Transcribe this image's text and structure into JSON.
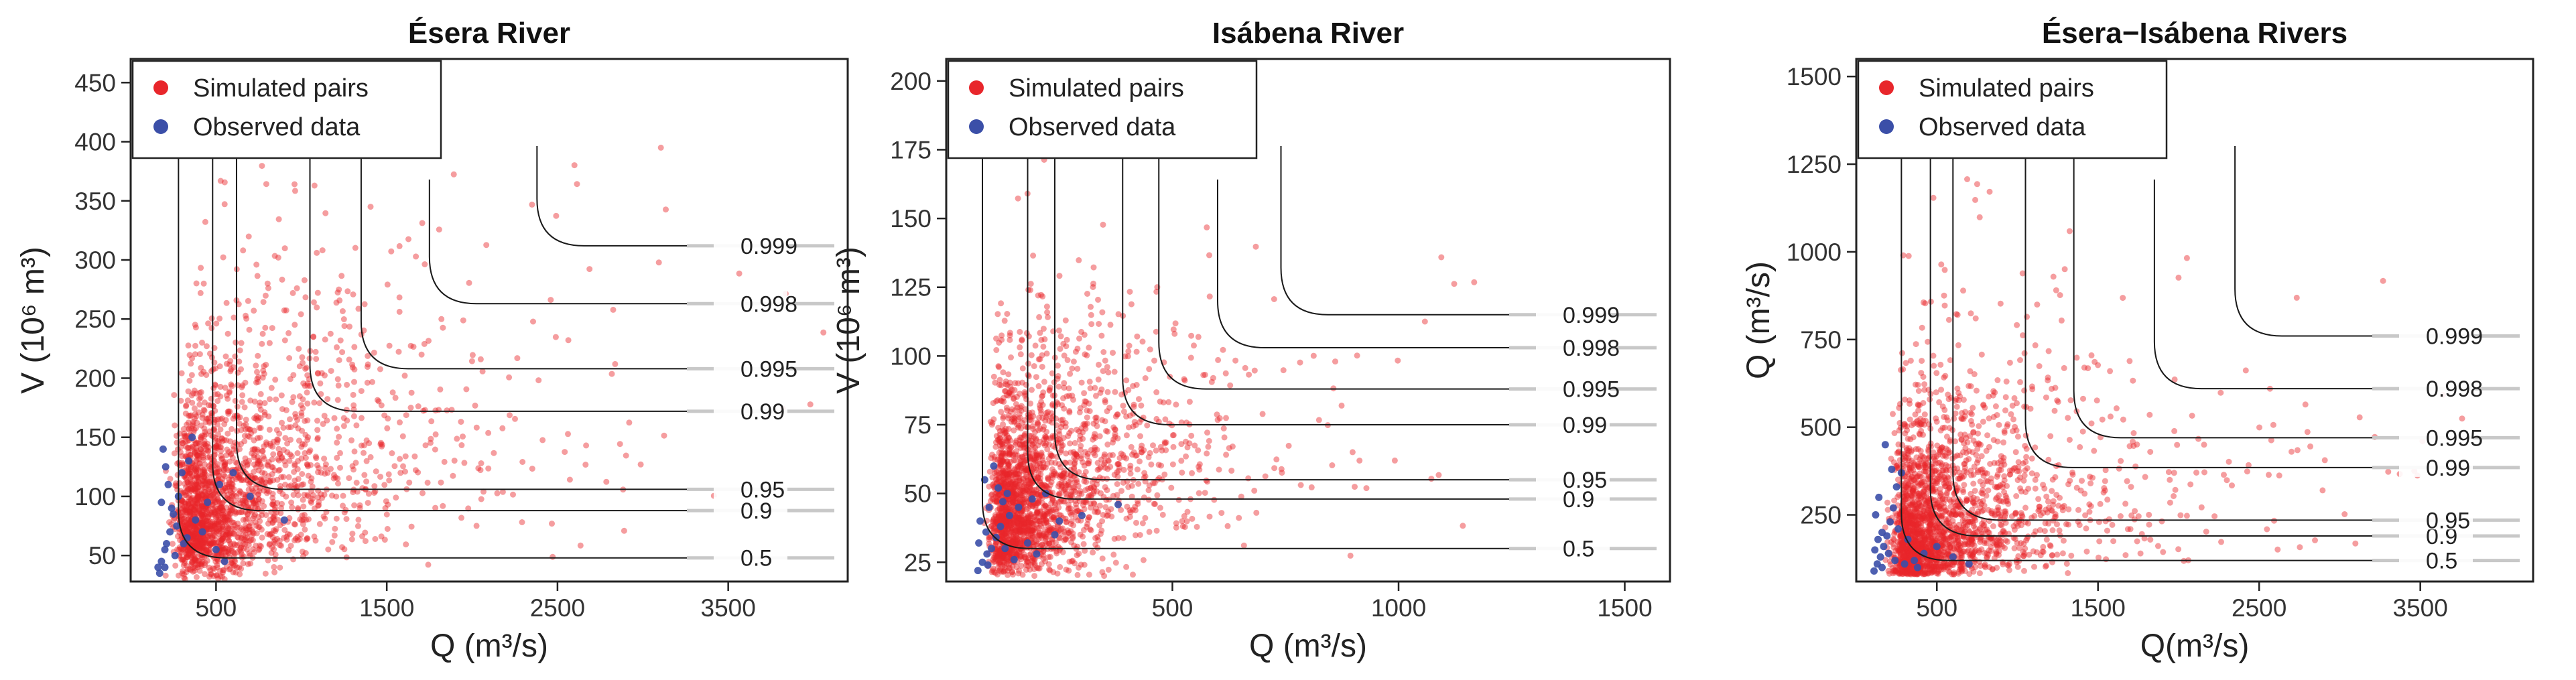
{
  "chart_data": [
    {
      "type": "scatter",
      "title": "Ésera River",
      "xlabel": "Q (m³/s)",
      "ylabel": "V (10⁶ m³)",
      "xlim": [
        0,
        4200
      ],
      "ylim": [
        28,
        470
      ],
      "x_ticks": [
        500,
        1500,
        2500,
        3500
      ],
      "x_tick_labels": [
        "500",
        "1500",
        "2500",
        "3500"
      ],
      "y_ticks": [
        50,
        100,
        150,
        200,
        250,
        300,
        350,
        400,
        450
      ],
      "y_tick_labels": [
        "50",
        "100",
        "150",
        "200",
        "250",
        "300",
        "350",
        "400",
        "450"
      ],
      "legend": [
        "Simulated pairs",
        "Observed data"
      ],
      "legend_position": "top-left",
      "series": [
        {
          "name": "Simulated pairs",
          "color": "#e8262b",
          "cluster": {
            "x_min": 150,
            "x_mode": 330,
            "x_max": 4200,
            "y_min": 30,
            "y_mode": 80,
            "y_max": 440,
            "corr": 0.55
          }
        },
        {
          "name": "Observed data",
          "color": "#3b4fa8",
          "points": [
            [
              160,
              40
            ],
            [
              180,
              45
            ],
            [
              200,
              55
            ],
            [
              210,
              60
            ],
            [
              230,
              70
            ],
            [
              250,
              85
            ],
            [
              280,
              100
            ],
            [
              300,
              120
            ],
            [
              340,
              130
            ],
            [
              360,
              150
            ],
            [
              200,
              40
            ],
            [
              170,
              35
            ],
            [
              260,
              50
            ],
            [
              310,
              60
            ],
            [
              380,
              80
            ],
            [
              450,
              95
            ],
            [
              520,
              110
            ],
            [
              600,
              120
            ],
            [
              700,
              100
            ],
            [
              900,
              80
            ],
            [
              190,
              140
            ],
            [
              220,
              110
            ],
            [
              240,
              90
            ],
            [
              270,
              75
            ],
            [
              330,
              65
            ],
            [
              420,
              70
            ],
            [
              500,
              55
            ],
            [
              550,
              45
            ],
            [
              180,
              95
            ],
            [
              205,
              125
            ]
          ]
        }
      ],
      "contours": [
        {
          "label": "0.5",
          "qx": 280,
          "vy": 48
        },
        {
          "label": "0.9",
          "qx": 480,
          "vy": 88
        },
        {
          "label": "0.95",
          "qx": 620,
          "vy": 106
        },
        {
          "label": "0.99",
          "qx": 1050,
          "vy": 172
        },
        {
          "label": "0.995",
          "qx": 1350,
          "vy": 208
        },
        {
          "label": "0.998",
          "qx": 1750,
          "vy": 263
        },
        {
          "label": "0.999",
          "qx": 2380,
          "vy": 312
        }
      ]
    },
    {
      "type": "scatter",
      "title": "Isábena River",
      "xlabel": "Q (m³/s)",
      "ylabel": "V (10⁶ m³)",
      "xlim": [
        0,
        1600
      ],
      "ylim": [
        18,
        208
      ],
      "x_ticks": [
        500,
        1000,
        1500
      ],
      "x_tick_labels": [
        "500",
        "1000",
        "1500"
      ],
      "y_ticks": [
        25,
        50,
        75,
        100,
        125,
        150,
        175,
        200
      ],
      "y_tick_labels": [
        "25",
        "50",
        "75",
        "100",
        "125",
        "150",
        "175",
        "200"
      ],
      "legend": [
        "Simulated pairs",
        "Observed data"
      ],
      "legend_position": "top-left",
      "series": [
        {
          "name": "Simulated pairs",
          "color": "#e8262b",
          "cluster": {
            "x_min": 60,
            "x_mode": 120,
            "x_max": 1250,
            "y_min": 20,
            "y_mode": 40,
            "y_max": 175,
            "corr": 0.55
          }
        },
        {
          "name": "Observed data",
          "color": "#3b4fa8",
          "points": [
            [
              70,
              22
            ],
            [
              80,
              25
            ],
            [
              90,
              28
            ],
            [
              100,
              30
            ],
            [
              110,
              34
            ],
            [
              120,
              38
            ],
            [
              140,
              42
            ],
            [
              160,
              45
            ],
            [
              190,
              48
            ],
            [
              220,
              50
            ],
            [
              75,
              40
            ],
            [
              85,
              55
            ],
            [
              95,
              45
            ],
            [
              130,
              30
            ],
            [
              150,
              26
            ],
            [
              180,
              32
            ],
            [
              250,
              40
            ],
            [
              300,
              42
            ],
            [
              380,
              46
            ],
            [
              105,
              60
            ],
            [
              115,
              52
            ],
            [
              125,
              47
            ],
            [
              72,
              32
            ],
            [
              88,
              36
            ],
            [
              200,
              28
            ],
            [
              240,
              35
            ],
            [
              92,
              24
            ],
            [
              135,
              50
            ]
          ]
        }
      ],
      "contours": [
        {
          "label": "0.5",
          "qx": 80,
          "vy": 30
        },
        {
          "label": "0.9",
          "qx": 180,
          "vy": 48
        },
        {
          "label": "0.95",
          "qx": 240,
          "vy": 55
        },
        {
          "label": "0.99",
          "qx": 390,
          "vy": 75
        },
        {
          "label": "0.995",
          "qx": 470,
          "vy": 88
        },
        {
          "label": "0.998",
          "qx": 600,
          "vy": 103
        },
        {
          "label": "0.999",
          "qx": 740,
          "vy": 115
        }
      ]
    },
    {
      "type": "scatter",
      "title": "Ésera−Isábena Rivers",
      "xlabel": "Q(m³/s)",
      "ylabel": "Q (m³/s)",
      "xlim": [
        0,
        4200
      ],
      "ylim": [
        60,
        1550
      ],
      "x_ticks": [
        500,
        1500,
        2500,
        3500
      ],
      "x_tick_labels": [
        "500",
        "1500",
        "2500",
        "3500"
      ],
      "y_ticks": [
        250,
        500,
        750,
        1000,
        1250,
        1500
      ],
      "y_tick_labels": [
        "250",
        "500",
        "750",
        "1000",
        "1250",
        "1500"
      ],
      "legend": [
        "Simulated pairs",
        "Observed data"
      ],
      "legend_position": "top-left",
      "series": [
        {
          "name": "Simulated pairs",
          "color": "#e8262b",
          "cluster": {
            "x_min": 100,
            "x_mode": 300,
            "x_max": 4100,
            "y_min": 80,
            "y_mode": 180,
            "y_max": 1350,
            "corr": 0.45
          }
        },
        {
          "name": "Observed data",
          "color": "#3b4fa8",
          "points": [
            [
              110,
              90
            ],
            [
              130,
              110
            ],
            [
              150,
              130
            ],
            [
              170,
              160
            ],
            [
              190,
              190
            ],
            [
              210,
              230
            ],
            [
              230,
              270
            ],
            [
              250,
              330
            ],
            [
              280,
              370
            ],
            [
              120,
              250
            ],
            [
              140,
              300
            ],
            [
              160,
              200
            ],
            [
              200,
              140
            ],
            [
              240,
              120
            ],
            [
              300,
              110
            ],
            [
              360,
              120
            ],
            [
              420,
              140
            ],
            [
              500,
              160
            ],
            [
              600,
              130
            ],
            [
              700,
              110
            ],
            [
              180,
              450
            ],
            [
              220,
              380
            ],
            [
              260,
              210
            ],
            [
              320,
              180
            ],
            [
              115,
              150
            ],
            [
              135,
              180
            ],
            [
              380,
              100
            ],
            [
              160,
              100
            ]
          ]
        }
      ],
      "contours": [
        {
          "label": "0.5",
          "qx": 280,
          "vy": 120
        },
        {
          "label": "0.9",
          "qx": 460,
          "vy": 190
        },
        {
          "label": "0.95",
          "qx": 600,
          "vy": 235
        },
        {
          "label": "0.99",
          "qx": 1050,
          "vy": 385
        },
        {
          "label": "0.995",
          "qx": 1350,
          "vy": 470
        },
        {
          "label": "0.998",
          "qx": 1850,
          "vy": 610
        },
        {
          "label": "0.999",
          "qx": 2350,
          "vy": 760
        }
      ]
    }
  ]
}
